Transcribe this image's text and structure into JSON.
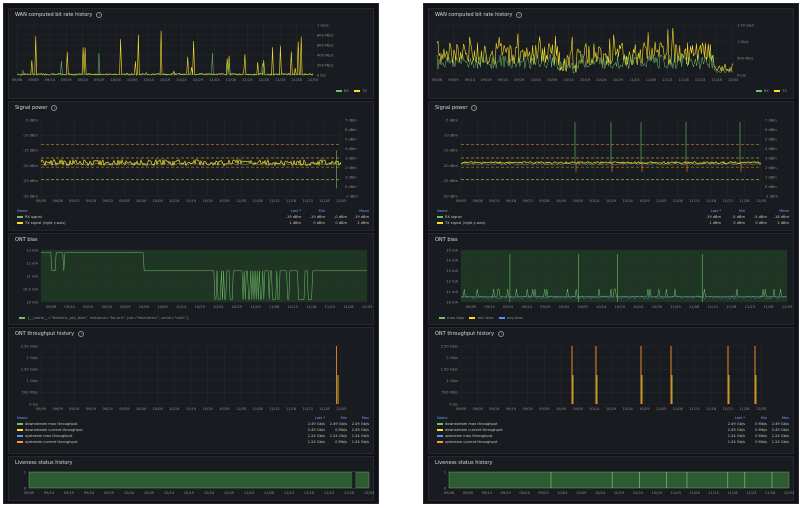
{
  "colors": {
    "green": "#73bf69",
    "yellow": "#fade2a",
    "orange": "#ff9830",
    "blue": "#5794f2",
    "red": "#f2495c"
  },
  "left": {
    "wan": {
      "title": "WAN computed bit rate history",
      "y_ticks": [
        "1 Gb/s",
        "800 Mb/s",
        "600 Mb/s",
        "400 Mb/s",
        "200 Mb/s",
        "0 b/s"
      ],
      "x_ticks": [
        "09/06",
        "09/09",
        "09/14",
        "09/19",
        "09/24",
        "09/29",
        "10/04",
        "10/09",
        "10/14",
        "10/19",
        "10/24",
        "10/29",
        "11/03",
        "11/08",
        "11/13",
        "11/18",
        "11/23",
        "11/28",
        "12/03"
      ],
      "legend": [
        "RX",
        "TX"
      ]
    },
    "signal": {
      "title": "Signal power",
      "y_left": [
        "-5 dBm",
        "-10 dBm",
        "-15 dBm",
        "-20 dBm",
        "-25 dBm",
        "-30 dBm"
      ],
      "y_right": [
        "7 dBm",
        "6 dBm",
        "5 dBm",
        "4 dBm",
        "3 dBm",
        "2 dBm",
        "1 dBm",
        "0 dBm",
        "-1 dBm"
      ],
      "x_ticks": [
        "09/05",
        "09/08",
        "09/13",
        "09/18",
        "09/23",
        "09/28",
        "10/04",
        "10/09",
        "10/14",
        "10/19",
        "10/24",
        "10/29",
        "11/03",
        "11/08",
        "11/13",
        "11/18",
        "11/23",
        "11/28",
        "12/03"
      ],
      "table_header": [
        "Name",
        "Last *",
        "Min",
        "Mean"
      ],
      "rows": [
        {
          "name": "RX signal",
          "last": "-19 dBm",
          "min": "-19 dBm",
          "mean": "-0 dBm",
          "extra": "-19 dBm"
        },
        {
          "name": "TX signal (right y-axis)",
          "last": "1 dBm",
          "min": "0 dBm",
          "mean": "0 dBm",
          "extra": "2 dBm"
        }
      ]
    },
    "ont_bias": {
      "title": "ONT bias",
      "y_ticks": [
        "13 mA",
        "12 mA",
        "11 mA",
        "10.5 mA",
        "10 mA"
      ],
      "x_ticks": [
        "09/09",
        "09/14",
        "09/19",
        "09/24",
        "09/29",
        "10/04",
        "10/09",
        "10/14",
        "10/19",
        "10/24",
        "10/29",
        "11/03",
        "11/08",
        "11/13",
        "11/18",
        "11/23",
        "11/28",
        "12/03"
      ],
      "legend": "{__name__=\"ftmetric_ont_bias\", instance=\"fst-ont\", job=\"fstmetrics\", serial=\"ont1\"}"
    },
    "throughput": {
      "title": "ONT throughput history",
      "y_ticks": [
        "2.50 Gb/s",
        "2 Gb/s",
        "1.50 Gb/s",
        "1 Gb/s",
        "500 Mb/s",
        "0 b/s"
      ],
      "x_ticks": [
        "09/09",
        "09/09",
        "09/14",
        "09/19",
        "09/24",
        "09/29",
        "10/04",
        "10/09",
        "10/14",
        "10/19",
        "10/24",
        "10/29",
        "11/03",
        "11/08",
        "11/13",
        "11/18",
        "11/23",
        "11/28",
        "12/03"
      ],
      "table_header": [
        "Name",
        "Last *",
        "Min",
        "Max"
      ],
      "rows": [
        {
          "name": "downstream max throughput",
          "last": "2.49 Gb/s",
          "min": "2.49 Gb/s",
          "max": "2.49 Gb/s"
        },
        {
          "name": "downstream current throughput",
          "last": "2.49 Gb/s",
          "min": "0 Mb/s",
          "max": "2.49 Gb/s"
        },
        {
          "name": "upstream max throughput",
          "last": "1.24 Gb/s",
          "min": "1.24 Gb/s",
          "max": "1.24 Gb/s"
        },
        {
          "name": "upstream current throughput",
          "last": "1.24 Gb/s",
          "min": "0 Mb/s",
          "max": "1.24 Gb/s"
        }
      ]
    },
    "liveness": {
      "title": "Liveness status history",
      "y_ticks": [
        "1",
        "0"
      ],
      "x_ticks": [
        "09/09",
        "09/14",
        "09/19",
        "09/24",
        "09/29",
        "10/04",
        "10/09",
        "10/14",
        "10/19",
        "10/24",
        "10/29",
        "11/03",
        "11/08",
        "11/13",
        "11/18",
        "11/23",
        "11/28",
        "12/03"
      ]
    }
  },
  "right": {
    "wan": {
      "title": "WAN computed bit rate history",
      "y_ticks": [
        "1.50 Gb/s",
        "1 Gb/s",
        "500 Mb/s",
        "0 b/s"
      ],
      "x_ticks": [
        "09/06",
        "09/09",
        "09/14",
        "09/19",
        "09/24",
        "09/29",
        "10/04",
        "10/09",
        "10/14",
        "10/19",
        "10/24",
        "10/29",
        "11/03",
        "11/08",
        "11/13",
        "11/18",
        "11/23",
        "11/28",
        "12/03"
      ],
      "legend": [
        "RX",
        "TX"
      ]
    },
    "signal": {
      "title": "Signal power",
      "y_left": [
        "-5 dBm",
        "-10 dBm",
        "-15 dBm",
        "-20 dBm",
        "-25 dBm",
        "-30 dBm"
      ],
      "y_right": [
        "7 dBm",
        "6 dBm",
        "5 dBm",
        "4 dBm",
        "3 dBm",
        "2 dBm",
        "1 dBm",
        "0 dBm",
        "-1 dBm"
      ],
      "x_ticks": [
        "09/05",
        "09/08",
        "09/13",
        "09/18",
        "09/23",
        "09/28",
        "10/04",
        "10/09",
        "10/14",
        "10/19",
        "10/24",
        "10/29",
        "11/03",
        "11/08",
        "11/13",
        "11/18",
        "11/23",
        "11/28",
        "12/03"
      ],
      "table_header": [
        "Name",
        "Last *",
        "Min",
        "Mean"
      ],
      "rows": [
        {
          "name": "RX signal",
          "last": "-19 dBm",
          "min": "-5 dBm",
          "mean": "-5 dBm",
          "extra": "-18 dBm"
        },
        {
          "name": "TX signal (right y-axis)",
          "last": "1 dBm",
          "min": "0 dBm",
          "mean": "0 dBm",
          "extra": "2 dBm"
        }
      ]
    },
    "ont_bias": {
      "title": "ONT bias",
      "y_ticks": [
        "15 mA",
        "14 mA",
        "13 mA",
        "12 mA",
        "11 mA",
        "10 mA"
      ],
      "x_ticks": [
        "09/09",
        "09/14",
        "09/19",
        "09/24",
        "09/29",
        "10/04",
        "10/09",
        "10/14",
        "10/19",
        "10/24",
        "10/29",
        "11/03",
        "11/08",
        "11/13",
        "11/18",
        "11/23",
        "11/28",
        "12/03"
      ],
      "legend": [
        "max bias",
        "min bias",
        "avg bias"
      ]
    },
    "throughput": {
      "title": "ONT throughput history",
      "y_ticks": [
        "2.50 Gb/s",
        "2 Gb/s",
        "1.50 Gb/s",
        "1 Gb/s",
        "500 Mb/s",
        "0 b/s"
      ],
      "x_ticks": [
        "09/09",
        "09/09",
        "09/14",
        "09/19",
        "09/24",
        "09/29",
        "10/04",
        "10/09",
        "10/14",
        "10/19",
        "10/24",
        "10/29",
        "11/03",
        "11/08",
        "11/13",
        "11/18",
        "11/23",
        "11/28",
        "12/03"
      ],
      "table_header": [
        "Name",
        "Last *",
        "Min",
        "Max"
      ],
      "rows": [
        {
          "name": "downstream max throughput",
          "last": "2.49 Gb/s",
          "min": "0 Mb/s",
          "max": "2.49 Gb/s"
        },
        {
          "name": "downstream current throughput",
          "last": "2.49 Gb/s",
          "min": "0 Mb/s",
          "max": "2.49 Gb/s"
        },
        {
          "name": "upstream max throughput",
          "last": "1.24 Gb/s",
          "min": "0 Mb/s",
          "max": "1.24 Gb/s"
        },
        {
          "name": "upstream current throughput",
          "last": "1.24 Gb/s",
          "min": "0 Mb/s",
          "max": "1.24 Gb/s"
        }
      ]
    },
    "liveness": {
      "title": "Liveness status history",
      "y_ticks": [
        "1",
        "0"
      ],
      "x_ticks": [
        "09/06",
        "09/09",
        "09/14",
        "09/19",
        "09/24",
        "09/29",
        "10/04",
        "10/09",
        "10/14",
        "10/19",
        "10/24",
        "10/29",
        "11/03",
        "11/08",
        "11/13",
        "11/18",
        "11/23",
        "11/28",
        "12/03"
      ]
    }
  }
}
